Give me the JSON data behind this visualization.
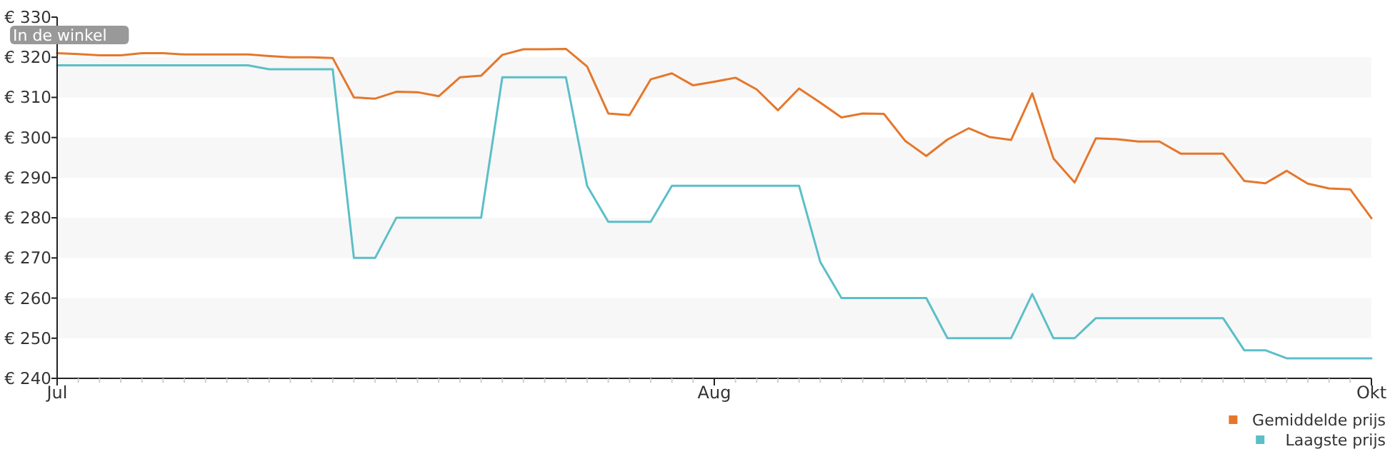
{
  "chart_data": {
    "type": "line",
    "categories": [
      "Jul",
      null,
      null,
      null,
      null,
      null,
      null,
      null,
      null,
      null,
      null,
      null,
      null,
      null,
      null,
      null,
      null,
      null,
      null,
      null,
      null,
      null,
      null,
      null,
      null,
      null,
      null,
      null,
      null,
      null,
      null,
      "Aug",
      null,
      null,
      null,
      null,
      null,
      null,
      null,
      null,
      null,
      null,
      null,
      null,
      null,
      null,
      null,
      null,
      null,
      null,
      null,
      null,
      null,
      null,
      null,
      null,
      null,
      null,
      null,
      null,
      null,
      null,
      "Okt"
    ],
    "series": [
      {
        "name": "Gemiddelde prijs",
        "color": "#e5772b",
        "values": [
          321,
          320.8,
          320.5,
          320.5,
          321,
          321,
          320.7,
          320.7,
          320.7,
          320.7,
          320.3,
          320,
          320,
          319.8,
          310,
          309.7,
          311.4,
          311.3,
          310.3,
          315,
          315.4,
          320.6,
          322,
          322,
          322.1,
          317.7,
          306,
          305.6,
          314.5,
          316,
          313,
          313.9,
          314.9,
          312,
          306.8,
          312.2,
          308.7,
          305,
          306,
          305.9,
          299.2,
          295.4,
          299.5,
          302.3,
          300.1,
          299.4,
          311,
          294.8,
          288.8,
          299.8,
          299.6,
          299,
          299,
          296,
          296,
          296,
          289.2,
          288.6,
          291.7,
          288.5,
          287.3,
          287.1,
          279.9
        ]
      },
      {
        "name": "Laagste prijs",
        "color": "#5bbfc8",
        "values": [
          318,
          318,
          318,
          318,
          318,
          318,
          318,
          318,
          318,
          318,
          317,
          317,
          317,
          317,
          270,
          270,
          280,
          280,
          280,
          280,
          280,
          315,
          315,
          315,
          315,
          288,
          279,
          279,
          279,
          288,
          288,
          288,
          288,
          288,
          288,
          288,
          269,
          260,
          260,
          260,
          260,
          260,
          250,
          250,
          250,
          250,
          261,
          250,
          250,
          255,
          255,
          255,
          255,
          255,
          255,
          255,
          247,
          247,
          245,
          245,
          245,
          245,
          245
        ]
      }
    ],
    "ylim": [
      240,
      330
    ],
    "yticks": [
      {
        "value": 240,
        "label": "€ 240"
      },
      {
        "value": 250,
        "label": "€ 250"
      },
      {
        "value": 260,
        "label": "€ 260"
      },
      {
        "value": 270,
        "label": "€ 270"
      },
      {
        "value": 280,
        "label": "€ 280"
      },
      {
        "value": 290,
        "label": "€ 290"
      },
      {
        "value": 300,
        "label": "€ 300"
      },
      {
        "value": 310,
        "label": "€ 310"
      },
      {
        "value": 320,
        "label": "€ 320"
      },
      {
        "value": 330,
        "label": "€ 330"
      }
    ],
    "bands": [
      {
        "axis": "y",
        "from": 250,
        "to": 260,
        "color": "#f7f7f7"
      },
      {
        "axis": "y",
        "from": 270,
        "to": 280,
        "color": "#f7f7f7"
      },
      {
        "axis": "y",
        "from": 290,
        "to": 300,
        "color": "#f7f7f7"
      },
      {
        "axis": "y",
        "from": 310,
        "to": 320,
        "color": "#f7f7f7"
      }
    ],
    "legend": "bottom right",
    "marker": "none",
    "line_style": "solid",
    "annotations": [
      "In de winkel"
    ]
  }
}
